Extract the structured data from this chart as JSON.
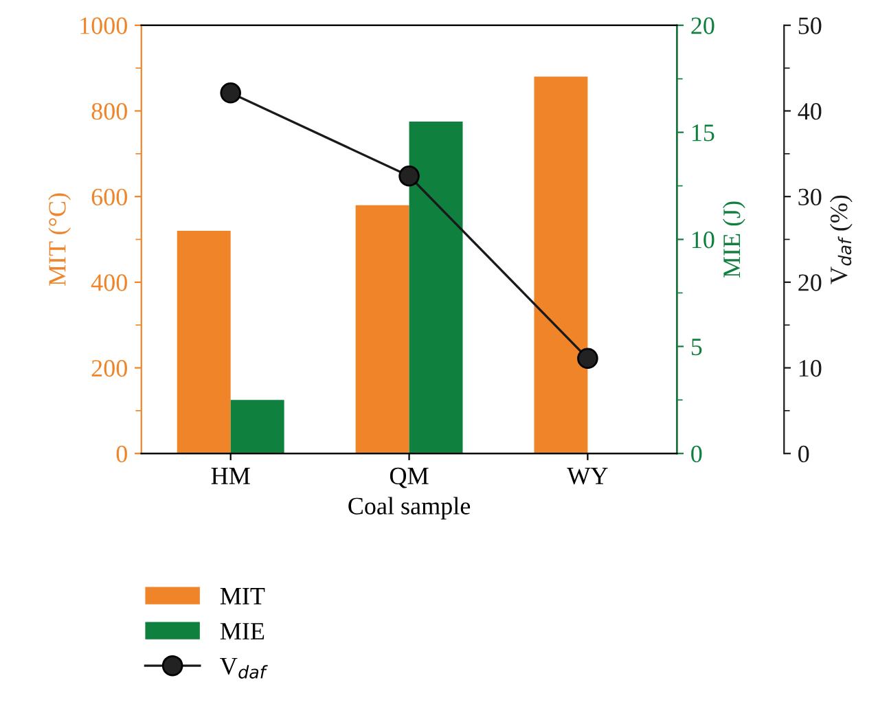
{
  "chart_data": {
    "type": "bar",
    "xlabel": "Coal sample",
    "ylabel": "MIT (°C)",
    "y2label": "MIE (J)",
    "y3label": "V$_{daf}$ (%)",
    "categories": [
      "HM",
      "QM",
      "WY"
    ],
    "series": [
      {
        "name": "MIT",
        "color": "#ef8429",
        "values": [
          520,
          580,
          880
        ]
      },
      {
        "name": "MIE",
        "color": "#10803f",
        "values": [
          2.5,
          15.5,
          null
        ],
        "axis": "y2"
      },
      {
        "name": "V$_{daf}$",
        "type": "line",
        "color": "#1a1a1a",
        "values": [
          42.1,
          32.4,
          11.1
        ],
        "axis": "y3",
        "marker": "circle"
      }
    ],
    "ylim": [
      0,
      1000
    ],
    "yticks": [
      0,
      200,
      400,
      600,
      800,
      1000
    ],
    "y2lim": [
      0,
      20
    ],
    "y2ticks": [
      0,
      5,
      10,
      15,
      20
    ],
    "y3lim": [
      0,
      50
    ],
    "y3ticks": [
      0,
      10,
      20,
      30,
      40,
      50
    ],
    "legend": "bottom left",
    "grid": false
  }
}
